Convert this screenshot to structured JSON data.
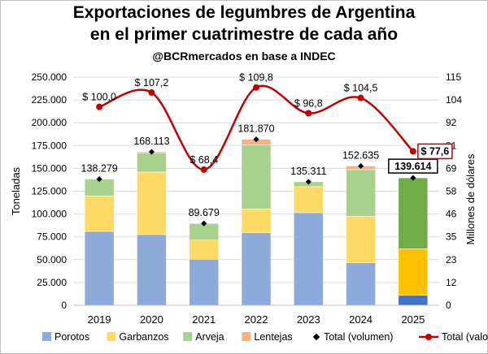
{
  "chart_data": {
    "type": "bar",
    "title": "Exportaciones de legumbres de Argentina",
    "title_line2": "en el primer cuatrimestre de cada año",
    "subtitle": "@BCRmercados en base a INDEC",
    "ylabel": "Toneladas",
    "y2label": "Millones de dólares",
    "ylim": [
      0,
      250000
    ],
    "y2lim": [
      0,
      115
    ],
    "yticks": [
      "0",
      "25.000",
      "50.000",
      "75.000",
      "100.000",
      "125.000",
      "150.000",
      "175.000",
      "200.000",
      "225.000",
      "250.000"
    ],
    "y2ticks": [
      "0",
      "12",
      "23",
      "35",
      "46",
      "58",
      "69",
      "81",
      "92",
      "104",
      "115"
    ],
    "categories": [
      "2019",
      "2020",
      "2021",
      "2022",
      "2023",
      "2024",
      "2025"
    ],
    "series": [
      {
        "name": "Porotos",
        "color": "#8eaadb",
        "values": [
          81000,
          77500,
          50500,
          79500,
          101500,
          46500,
          11000
        ]
      },
      {
        "name": "Garbanzos",
        "color": "#ffd966",
        "values": [
          39000,
          68500,
          21000,
          26000,
          28500,
          51000,
          51000
        ]
      },
      {
        "name": "Arveja",
        "color": "#a9d18e",
        "values": [
          18279,
          20613,
          18179,
          70370,
          5311,
          51135,
          77614
        ]
      },
      {
        "name": "Lentejas",
        "color": "#f4b183",
        "values": [
          0,
          1500,
          0,
          6000,
          0,
          4000,
          0
        ]
      }
    ],
    "total_volume": {
      "name": "Total (volumen)",
      "values": [
        138279,
        168113,
        89679,
        181870,
        135311,
        152635,
        139614
      ],
      "labels": [
        "138.279",
        "168.113",
        "89.679",
        "181.870",
        "135.311",
        "152.635",
        "139.614"
      ]
    },
    "total_value": {
      "name": "Total (valor)",
      "color": "#c00000",
      "values": [
        100.0,
        107.2,
        68.4,
        109.8,
        96.8,
        104.5,
        77.6
      ],
      "labels": [
        "$ 100,0",
        "$ 107,2",
        "$ 68,4",
        "$ 109,8",
        "$ 96,8",
        "$ 104,5",
        "$ 77,6"
      ]
    },
    "highlight_2025_colors": [
      "#4472c4",
      "#ffc000",
      "#70ad47"
    ],
    "grid": true,
    "legend_position": "bottom"
  }
}
